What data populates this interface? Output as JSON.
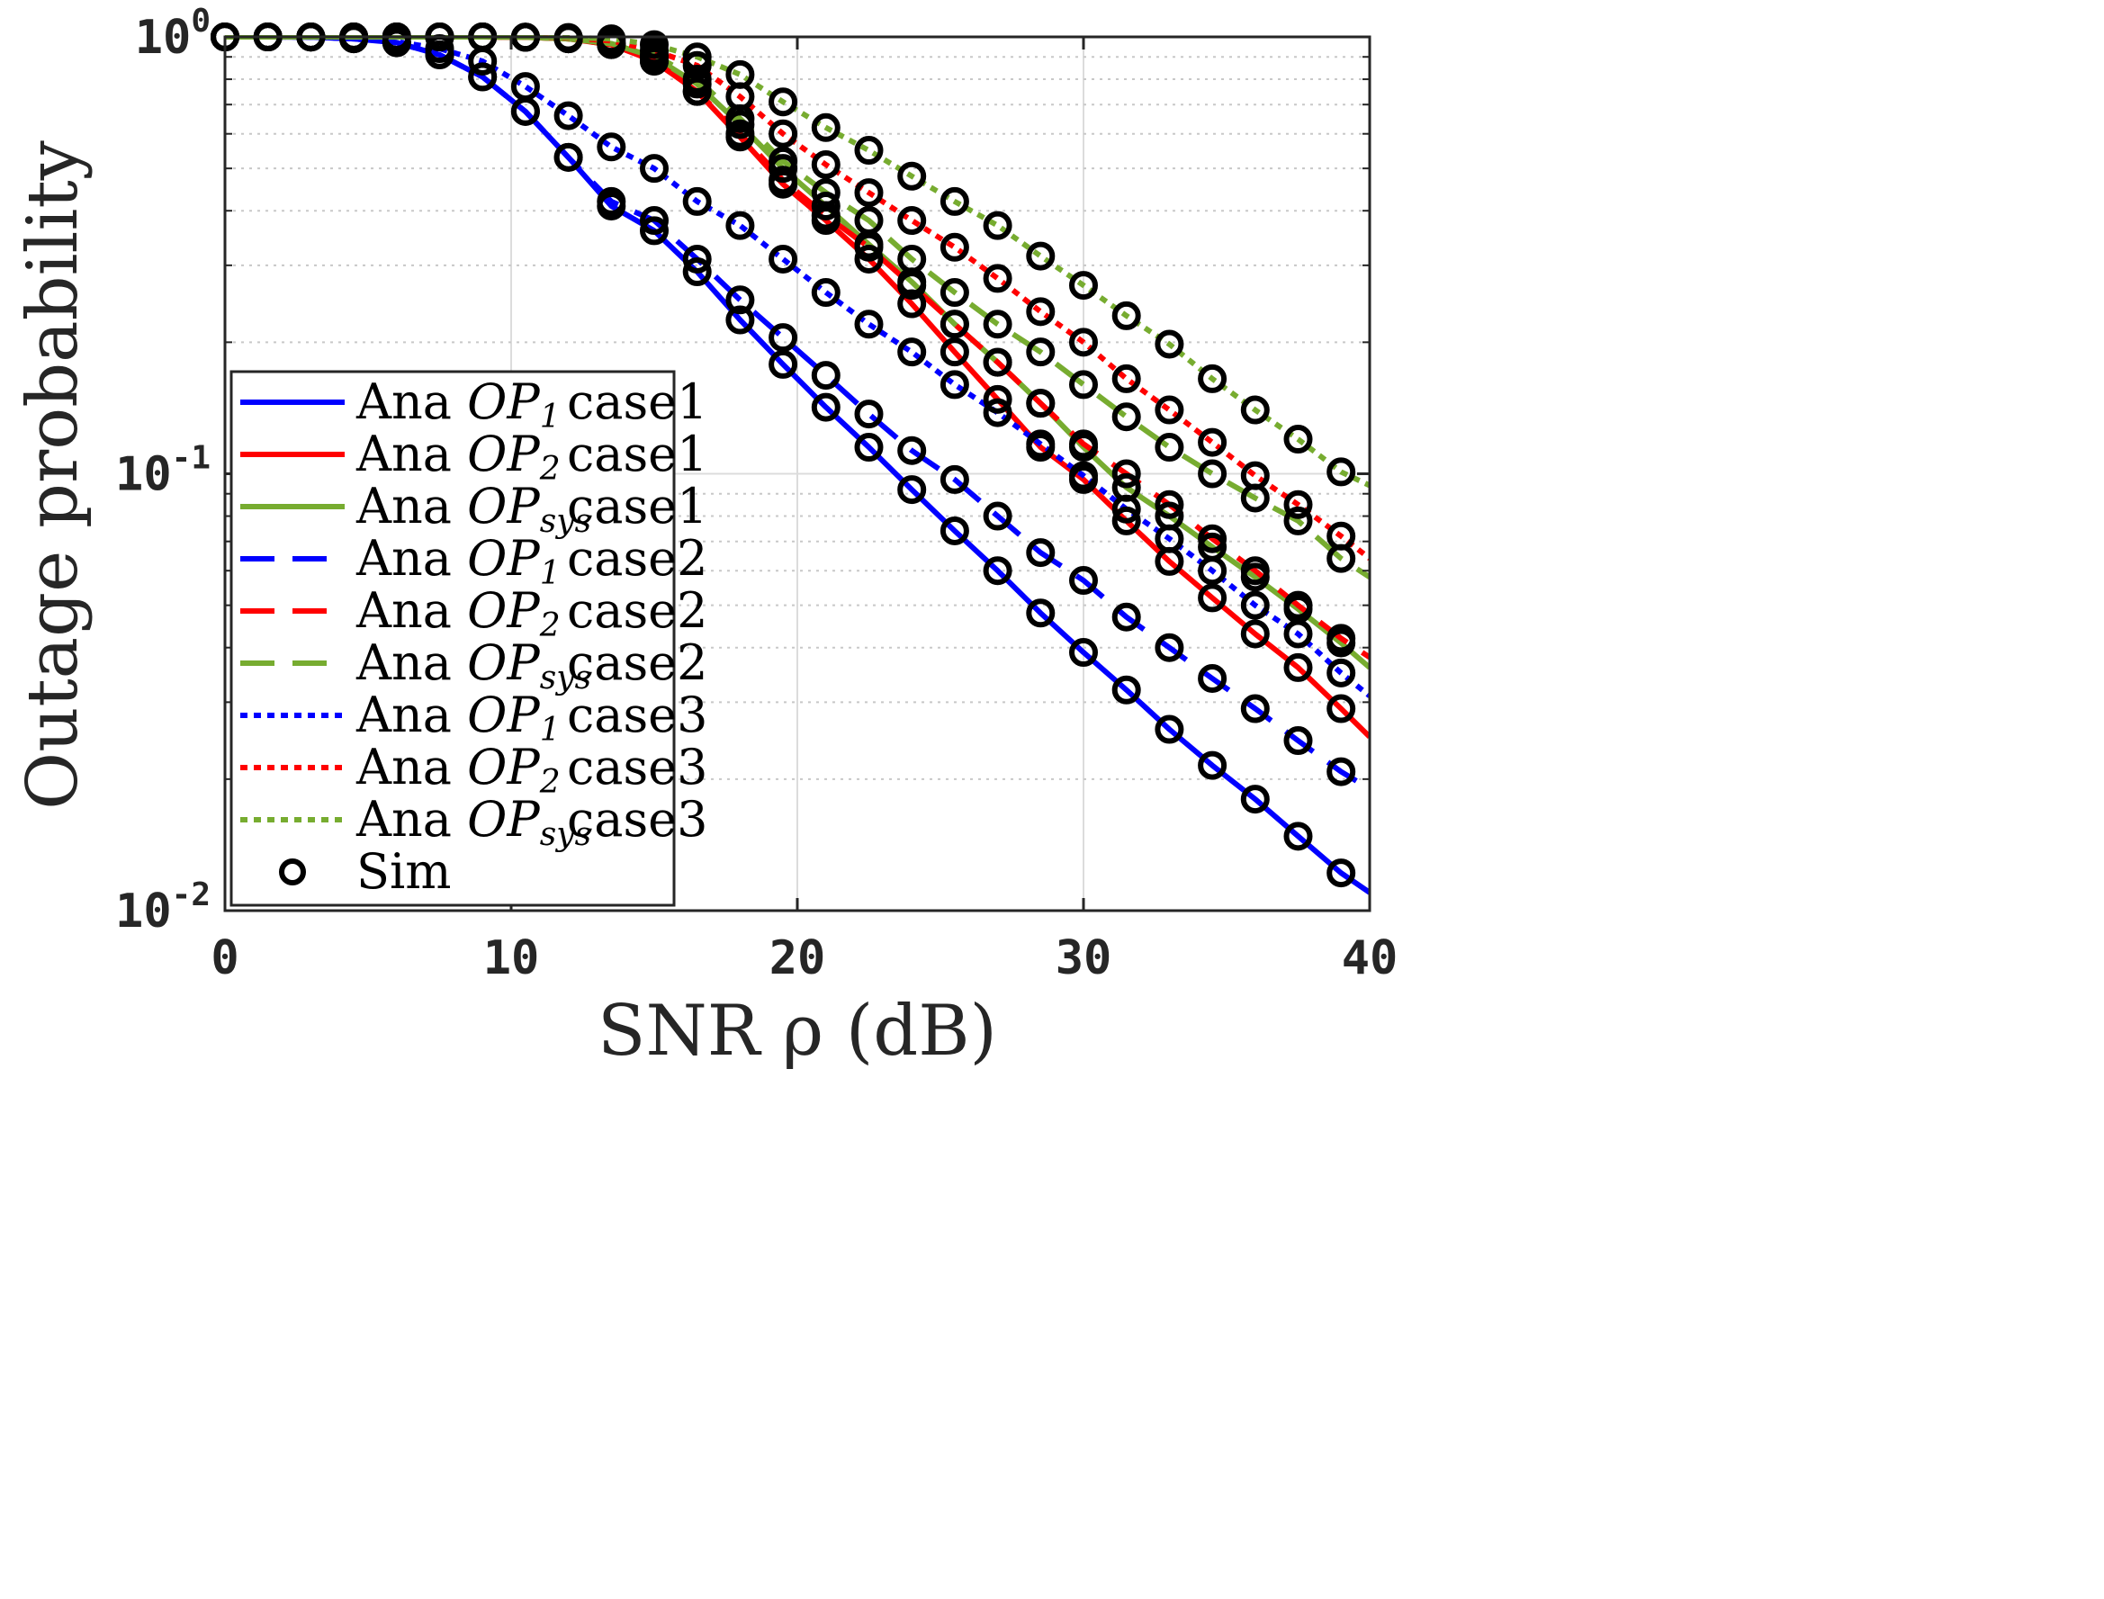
{
  "chart_data": {
    "type": "line",
    "xlabel": "SNR ρ (dB)",
    "ylabel": "Outage probability",
    "xscale": "linear",
    "yscale": "log",
    "xlim": [
      0,
      40
    ],
    "ylim": [
      0.01,
      1
    ],
    "x_ticks": [
      0,
      10,
      20,
      30,
      40
    ],
    "x_tick_labels": [
      "0",
      "10",
      "20",
      "30",
      "40"
    ],
    "y_ticks": [
      0.01,
      0.1,
      1
    ],
    "y_tick_labels": [
      {
        "base": "10",
        "exp": "-2"
      },
      {
        "base": "10",
        "exp": "-1"
      },
      {
        "base": "10",
        "exp": "0"
      }
    ],
    "grid": true,
    "legend_position": "bottom-left",
    "x": [
      0,
      1.5,
      3,
      4.5,
      6,
      7.5,
      9,
      10.5,
      12,
      13.5,
      15,
      16.5,
      18,
      19.5,
      21,
      22.5,
      24,
      25.5,
      27,
      28.5,
      30,
      31.5,
      33,
      34.5,
      36,
      37.5,
      39,
      40
    ],
    "series": [
      {
        "name": "Ana OP1 case1",
        "var": "OP",
        "sub": "1",
        "case": "case1",
        "color": "#0000ff",
        "dash": "solid",
        "values": [
          1.0,
          1.0,
          0.999,
          0.99,
          0.97,
          0.91,
          0.81,
          0.675,
          0.53,
          0.41,
          0.36,
          0.29,
          0.225,
          0.178,
          0.142,
          0.115,
          0.092,
          0.074,
          0.06,
          0.048,
          0.039,
          0.032,
          0.026,
          0.0215,
          0.018,
          0.0148,
          0.0122,
          0.011
        ]
      },
      {
        "name": "Ana OP2 case1",
        "var": "OP",
        "sub": "2",
        "case": "case1",
        "color": "#ff0000",
        "dash": "solid",
        "values": [
          1.0,
          1.0,
          1.0,
          1.0,
          1.0,
          1.0,
          1.0,
          0.998,
          0.99,
          0.96,
          0.88,
          0.75,
          0.59,
          0.46,
          0.38,
          0.31,
          0.245,
          0.19,
          0.148,
          0.115,
          0.097,
          0.078,
          0.063,
          0.052,
          0.043,
          0.036,
          0.029,
          0.025
        ]
      },
      {
        "name": "Ana OPsys case1",
        "var": "OP",
        "sub": "sys",
        "case": "case1",
        "color": "#77ac30",
        "dash": "solid",
        "values": [
          1.0,
          1.0,
          1.0,
          1.0,
          1.0,
          1.0,
          1.0,
          0.998,
          0.99,
          0.965,
          0.9,
          0.78,
          0.63,
          0.5,
          0.41,
          0.335,
          0.275,
          0.22,
          0.18,
          0.145,
          0.115,
          0.093,
          0.08,
          0.068,
          0.058,
          0.049,
          0.041,
          0.036
        ]
      },
      {
        "name": "Ana OP1 case2",
        "var": "OP",
        "sub": "1",
        "case": "case2",
        "color": "#0000ff",
        "dash": "dashed",
        "values": [
          1.0,
          1.0,
          0.999,
          0.99,
          0.97,
          0.91,
          0.81,
          0.675,
          0.53,
          0.42,
          0.38,
          0.31,
          0.25,
          0.205,
          0.168,
          0.137,
          0.113,
          0.097,
          0.08,
          0.066,
          0.057,
          0.047,
          0.04,
          0.034,
          0.029,
          0.0245,
          0.0208,
          0.019
        ]
      },
      {
        "name": "Ana OP2 case2",
        "var": "OP",
        "sub": "2",
        "case": "case2",
        "color": "#ff0000",
        "dash": "dashed",
        "values": [
          1.0,
          1.0,
          1.0,
          1.0,
          1.0,
          1.0,
          1.0,
          0.998,
          0.99,
          0.96,
          0.88,
          0.75,
          0.6,
          0.47,
          0.39,
          0.33,
          0.27,
          0.22,
          0.18,
          0.145,
          0.117,
          0.1,
          0.085,
          0.071,
          0.06,
          0.05,
          0.042,
          0.038
        ]
      },
      {
        "name": "Ana OPsys case2",
        "var": "OP",
        "sub": "sys",
        "case": "case2",
        "color": "#77ac30",
        "dash": "dashed",
        "values": [
          1.0,
          1.0,
          1.0,
          1.0,
          1.0,
          1.0,
          1.0,
          0.998,
          0.99,
          0.965,
          0.91,
          0.8,
          0.65,
          0.52,
          0.44,
          0.38,
          0.31,
          0.26,
          0.22,
          0.19,
          0.16,
          0.135,
          0.115,
          0.1,
          0.088,
          0.078,
          0.064,
          0.058
        ]
      },
      {
        "name": "Ana OP1 case3",
        "var": "OP",
        "sub": "1",
        "case": "case3",
        "color": "#0000ff",
        "dash": "dotted",
        "values": [
          1.0,
          1.0,
          0.999,
          0.99,
          0.975,
          0.94,
          0.88,
          0.77,
          0.66,
          0.56,
          0.5,
          0.42,
          0.37,
          0.31,
          0.26,
          0.22,
          0.19,
          0.16,
          0.138,
          0.117,
          0.099,
          0.083,
          0.071,
          0.06,
          0.05,
          0.043,
          0.035,
          0.031
        ]
      },
      {
        "name": "Ana OP2 case3",
        "var": "OP",
        "sub": "2",
        "case": "case3",
        "color": "#ff0000",
        "dash": "dotted",
        "values": [
          1.0,
          1.0,
          1.0,
          1.0,
          1.0,
          1.0,
          1.0,
          0.999,
          0.995,
          0.98,
          0.93,
          0.86,
          0.73,
          0.6,
          0.51,
          0.44,
          0.38,
          0.33,
          0.28,
          0.235,
          0.2,
          0.165,
          0.14,
          0.118,
          0.099,
          0.085,
          0.072,
          0.064
        ]
      },
      {
        "name": "Ana OPsys case3",
        "var": "OP",
        "sub": "sys",
        "case": "case3",
        "color": "#77ac30",
        "dash": "dotted",
        "values": [
          1.0,
          1.0,
          1.0,
          1.0,
          1.0,
          1.0,
          1.0,
          0.999,
          0.997,
          0.99,
          0.96,
          0.9,
          0.82,
          0.71,
          0.62,
          0.55,
          0.48,
          0.42,
          0.37,
          0.315,
          0.27,
          0.23,
          0.198,
          0.165,
          0.14,
          0.12,
          0.101,
          0.094
        ]
      },
      {
        "name": "Sim",
        "var": "Sim",
        "color": "#000000",
        "marker": "circle",
        "values": null
      }
    ]
  }
}
